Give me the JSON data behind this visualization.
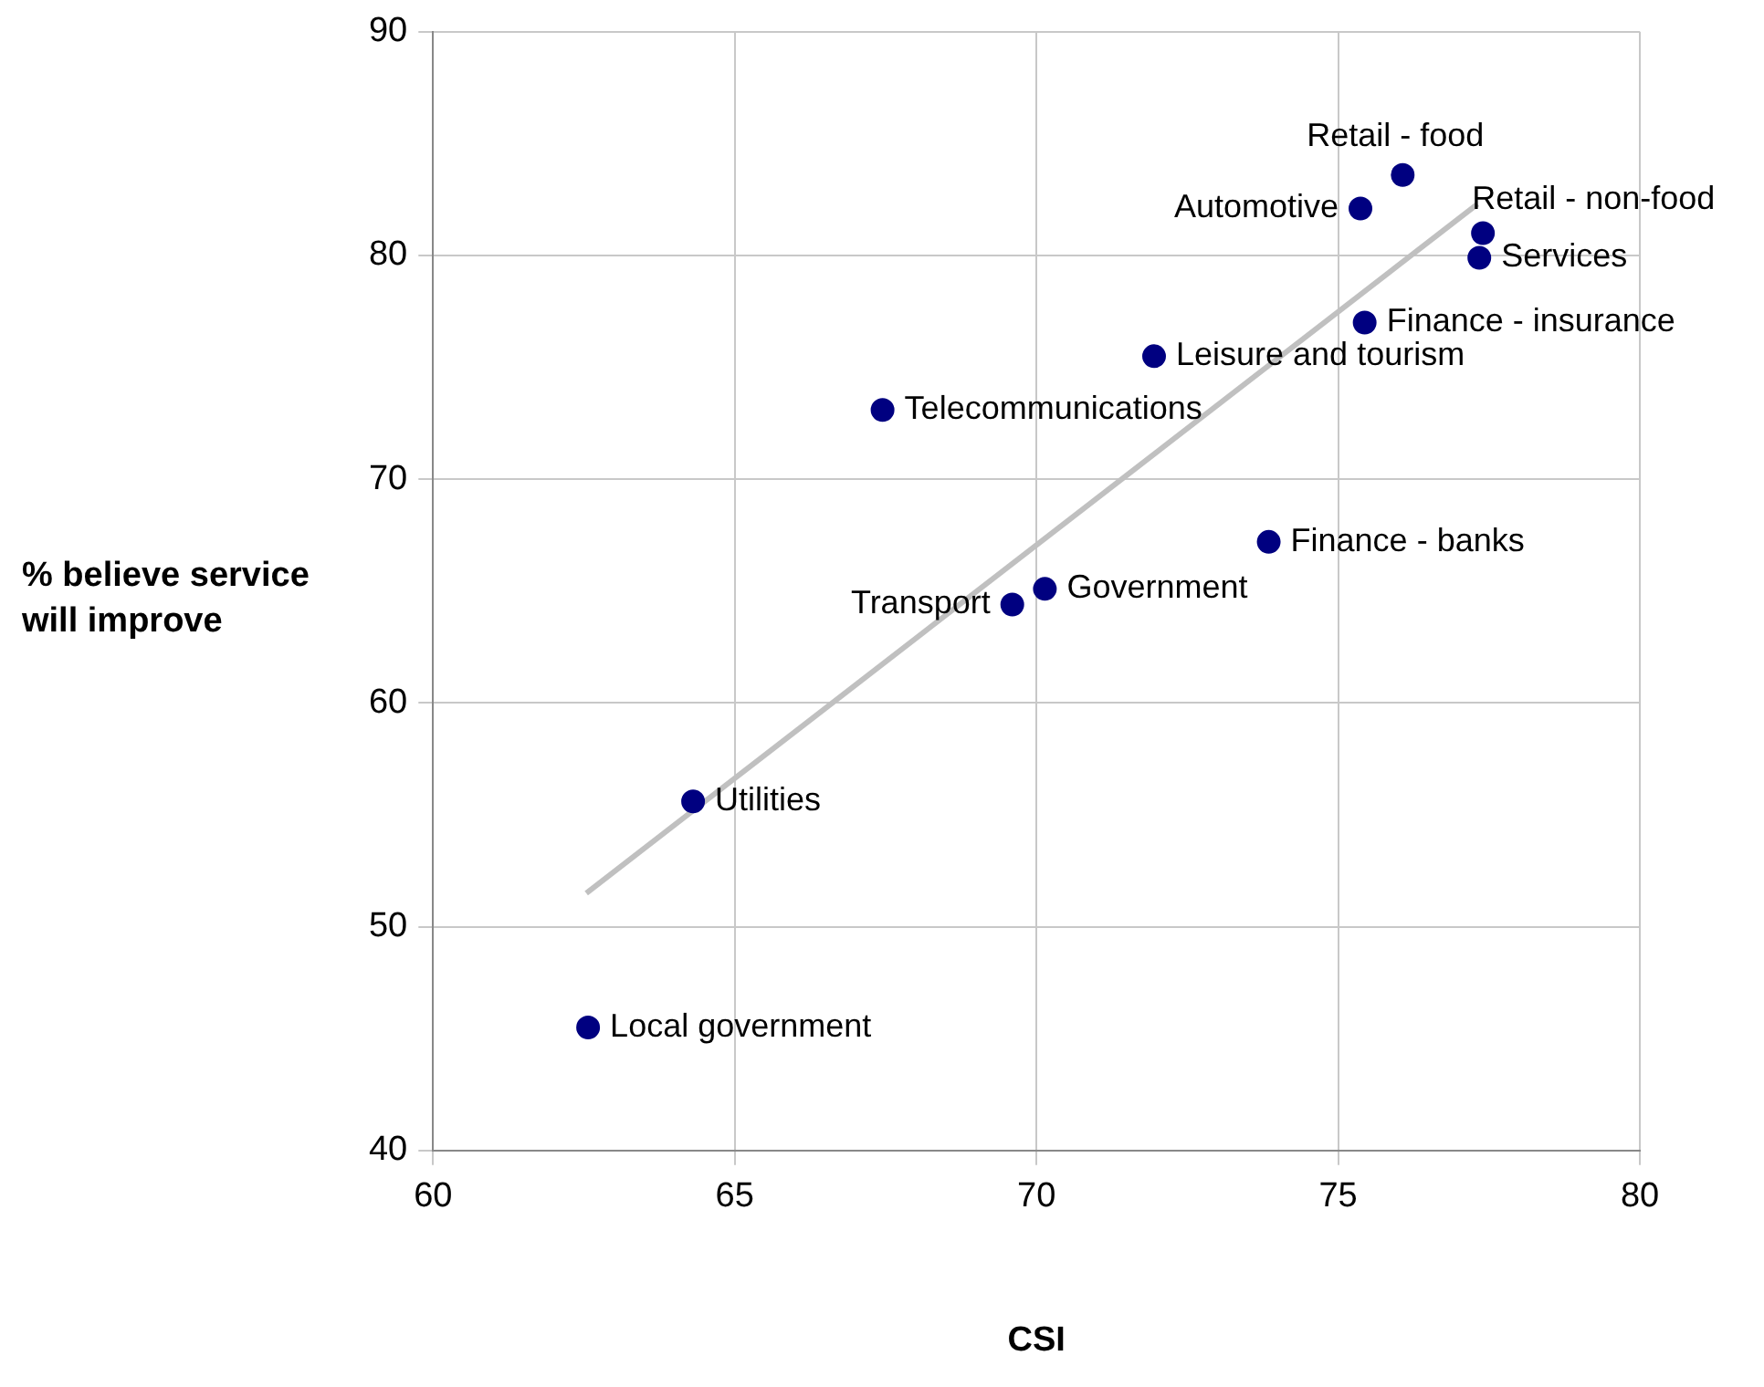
{
  "chart_data": {
    "type": "scatter",
    "xlabel": "CSI",
    "ylabel": "% believe service will improve",
    "xlim": [
      60,
      80
    ],
    "xticks": [
      60,
      65,
      70,
      75,
      80
    ],
    "ylim": [
      40,
      90
    ],
    "yticks": [
      40,
      50,
      60,
      70,
      80,
      90
    ],
    "grid": true,
    "legend": false,
    "series": [
      {
        "marker": "circle",
        "color": "#000080",
        "x": [
          76.07,
          75.37,
          77.4,
          77.34,
          75.44,
          71.95,
          67.45,
          73.85,
          70.14,
          69.6,
          64.31,
          62.57
        ],
        "values": [
          83.6,
          82.1,
          81.0,
          79.9,
          77.0,
          75.5,
          73.1,
          67.2,
          65.1,
          64.4,
          55.6,
          45.5
        ]
      },
      {
        "type": "line",
        "marker": "none",
        "color": "#c0c0c0",
        "x": [
          62.54,
          77.31
        ],
        "values": [
          51.5,
          82.3
        ]
      }
    ],
    "annotations": [
      {
        "text": "Retail - food",
        "x": 76.07,
        "y": 83.6
      },
      {
        "text": "Automotive",
        "x": 75.37,
        "y": 82.1
      },
      {
        "text": "Retail - non-food",
        "x": 77.4,
        "y": 81.0
      },
      {
        "text": "Services",
        "x": 77.34,
        "y": 79.9
      },
      {
        "text": "Finance - insurance",
        "x": 75.44,
        "y": 77.0
      },
      {
        "text": "Leisure and tourism",
        "x": 71.95,
        "y": 75.5
      },
      {
        "text": "Telecommunications",
        "x": 67.45,
        "y": 73.1
      },
      {
        "text": "Finance - banks",
        "x": 73.85,
        "y": 67.2
      },
      {
        "text": "Government",
        "x": 70.14,
        "y": 65.1
      },
      {
        "text": "Transport",
        "x": 69.6,
        "y": 64.4
      },
      {
        "text": "Utilities",
        "x": 64.31,
        "y": 55.6
      },
      {
        "text": "Local government",
        "x": 62.57,
        "y": 45.5
      }
    ]
  }
}
